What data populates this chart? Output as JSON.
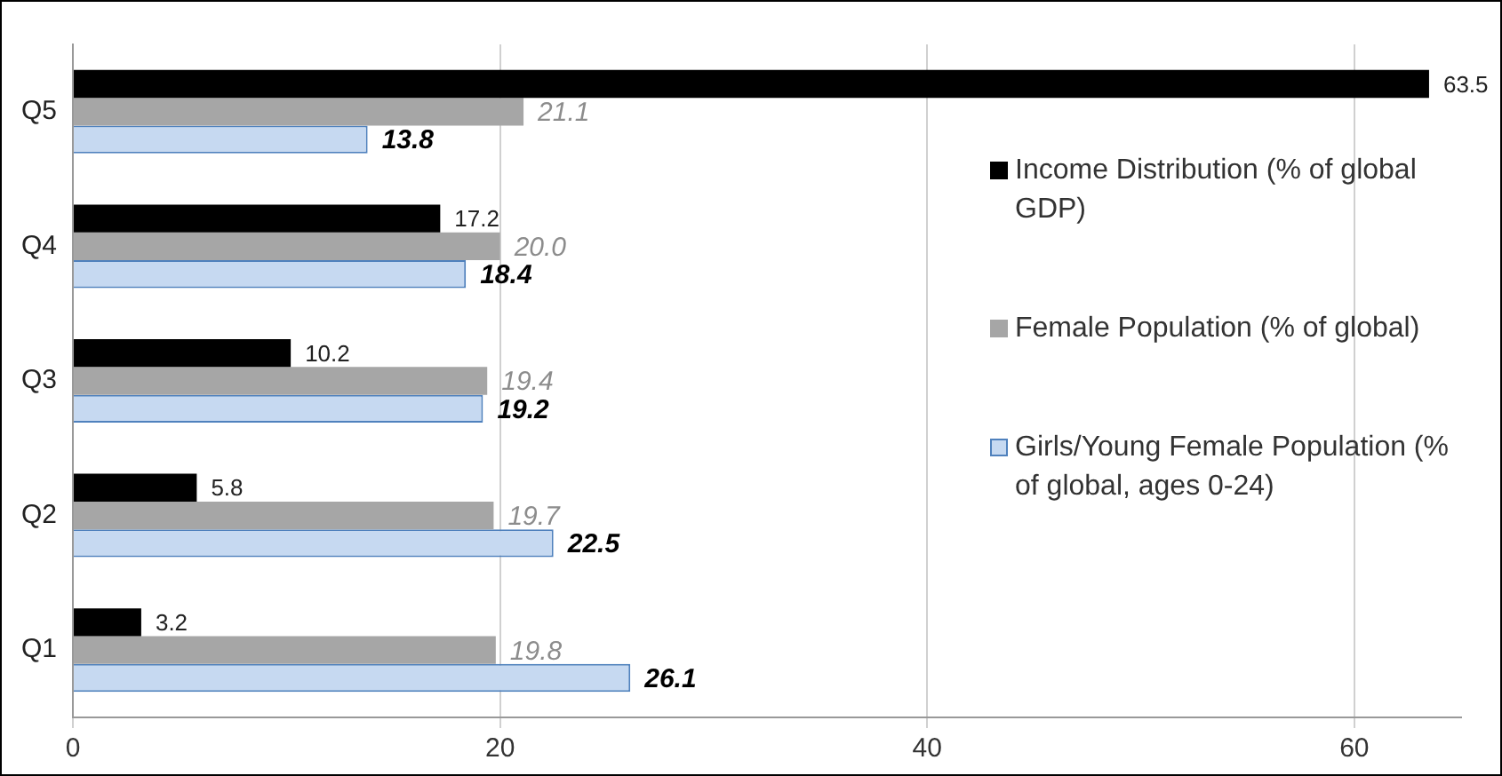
{
  "chart_data": {
    "type": "bar",
    "orientation": "horizontal",
    "categories": [
      "Q5",
      "Q4",
      "Q3",
      "Q2",
      "Q1"
    ],
    "series": [
      {
        "name": "Income Distribution (% of global GDP)",
        "color": "#000000",
        "values": [
          63.5,
          17.2,
          10.2,
          5.8,
          3.2
        ]
      },
      {
        "name": "Female Population (% of global)",
        "color": "#a6a6a6",
        "values": [
          21.1,
          20.0,
          19.4,
          19.7,
          19.8
        ],
        "value_labels": [
          "21.1",
          "20.0",
          "19.4",
          "19.7",
          "19.8"
        ]
      },
      {
        "name": "Girls/Young Female Population (% of global, ages 0-24)",
        "color": "#c6d9f1",
        "values": [
          13.8,
          18.4,
          19.2,
          22.5,
          26.1
        ]
      }
    ],
    "xlim": [
      0,
      65
    ],
    "xticks": [
      0,
      20,
      40,
      60
    ],
    "grid": "x",
    "legend": "right",
    "data_labels": true
  }
}
